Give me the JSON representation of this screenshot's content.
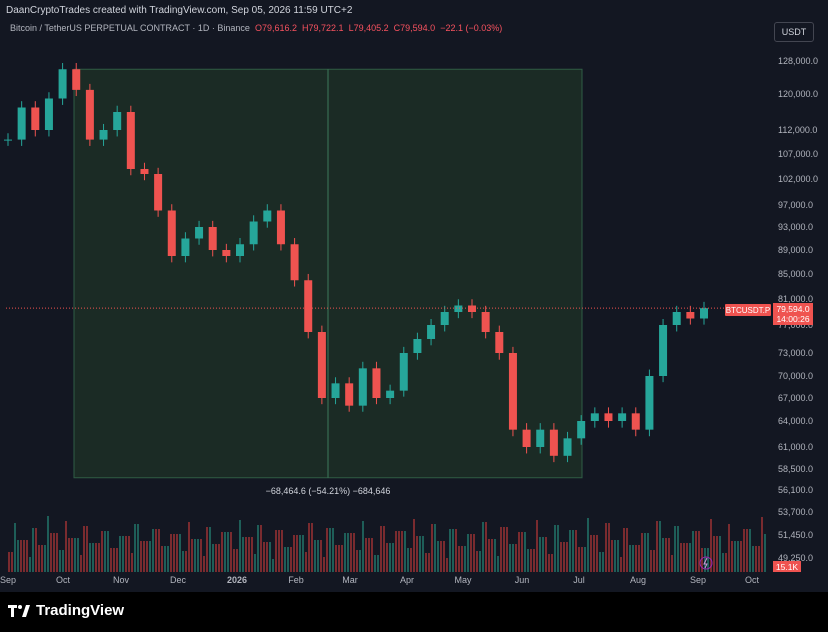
{
  "header": {
    "attribution": "DaanCryptoTrades created with TradingView.com, Sep 05, 2026 11:59 UTC+2"
  },
  "symbol": {
    "name": "Bitcoin / TetherUS PERPETUAL CONTRACT · 1D · Binance",
    "open": "O79,616.2",
    "high": "H79,722.1",
    "low": "L79,405.2",
    "close": "C79,594.0",
    "change": "−22.1 (−0.03%)"
  },
  "currency": "USDT",
  "price_tag": {
    "label": "BTCUSDT.P",
    "price": "79,594.0",
    "countdown": "14:00:26"
  },
  "volume_tag": "15.1K",
  "measure_label": "−68,464.6 (−54.21%) −684,646",
  "footer": {
    "brand": "TradingView"
  },
  "colors": {
    "up": "#26a69a",
    "down": "#ef5350",
    "range_fill": "#1b2b25",
    "range_border": "#2f5d45",
    "background": "#131722"
  },
  "chart_data": {
    "type": "candlestick",
    "y_ticks": [
      "128,000.0",
      "120,000.0",
      "112,000.0",
      "107,000.0",
      "102,000.0",
      "97,000.0",
      "93,000.0",
      "89,000.0",
      "85,000.0",
      "81,000.0",
      "77,000.0",
      "73,000.0",
      "70,000.0",
      "67,000.0",
      "64,000.0",
      "61,000.0",
      "58,500.0",
      "56,100.0",
      "53,700.0",
      "51,450.0",
      "49,250.0"
    ],
    "x_ticks": [
      "Sep",
      "Oct",
      "Nov",
      "Dec",
      "2026",
      "Feb",
      "Mar",
      "Apr",
      "May",
      "Jun",
      "Jul",
      "Aug",
      "Sep",
      "Oct"
    ],
    "ylim": [
      49250,
      128000
    ],
    "series_points": [
      [
        "Sep",
        110000
      ],
      [
        "Sep",
        117000
      ],
      [
        "Sep",
        112000
      ],
      [
        "Oct",
        119000
      ],
      [
        "Oct",
        126000
      ],
      [
        "Oct",
        121000
      ],
      [
        "Oct",
        110000
      ],
      [
        "Oct",
        112000
      ],
      [
        "Nov",
        116000
      ],
      [
        "Nov",
        104000
      ],
      [
        "Nov",
        103000
      ],
      [
        "Nov",
        96000
      ],
      [
        "Nov",
        88000
      ],
      [
        "Dec",
        91000
      ],
      [
        "Dec",
        93000
      ],
      [
        "Dec",
        89000
      ],
      [
        "Dec",
        88000
      ],
      [
        "Dec",
        90000
      ],
      [
        "2026",
        94000
      ],
      [
        "2026",
        96000
      ],
      [
        "2026",
        90000
      ],
      [
        "Feb",
        84000
      ],
      [
        "Feb",
        76000
      ],
      [
        "Feb",
        67000
      ],
      [
        "Feb",
        69000
      ],
      [
        "Mar",
        66000
      ],
      [
        "Mar",
        71000
      ],
      [
        "Mar",
        67000
      ],
      [
        "Apr",
        68000
      ],
      [
        "Apr",
        73000
      ],
      [
        "Apr",
        75000
      ],
      [
        "Apr",
        77000
      ],
      [
        "May",
        79000
      ],
      [
        "May",
        80000
      ],
      [
        "May",
        79000
      ],
      [
        "May",
        76000
      ],
      [
        "Jun",
        73000
      ],
      [
        "Jun",
        63000
      ],
      [
        "Jun",
        61000
      ],
      [
        "Jun",
        63000
      ],
      [
        "Jul",
        60000
      ],
      [
        "Jul",
        62000
      ],
      [
        "Jul",
        64000
      ],
      [
        "Jul",
        65000
      ],
      [
        "Aug",
        64000
      ],
      [
        "Aug",
        65000
      ],
      [
        "Aug",
        63000
      ],
      [
        "Aug",
        70000
      ],
      [
        "Aug",
        77000
      ],
      [
        "Sep",
        79000
      ],
      [
        "Sep",
        78000
      ],
      [
        "Sep",
        79594
      ]
    ],
    "volume_note": "Volume histogram shown beneath price candles",
    "highlight_range": {
      "from_price": 126000,
      "to_price": 57500
    }
  }
}
